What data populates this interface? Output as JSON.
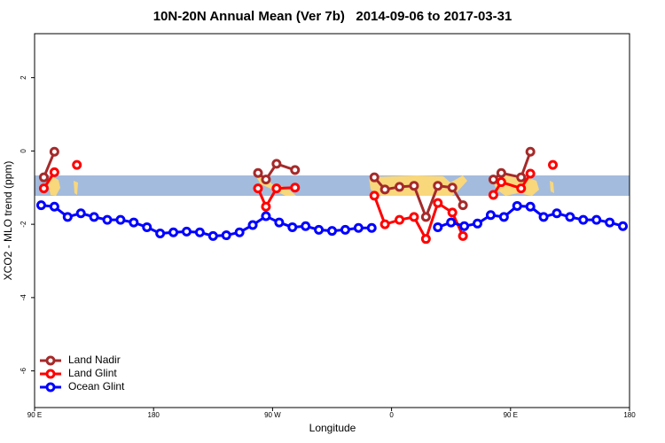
{
  "chart_data": {
    "type": "line",
    "title": "10N-20N Annual Mean (Ver 7b)   2014-09-06 to 2017-03-31",
    "x_label": "Longitude",
    "y_label": "XCO2 - MLO trend (ppm)",
    "xlim": [
      90,
      540
    ],
    "xticks": [
      {
        "value": 90,
        "label": "90 E"
      },
      180,
      {
        "value": 270,
        "label": "90 W"
      },
      {
        "value": 360,
        "label": "0"
      },
      {
        "value": 450,
        "label": "90 E"
      },
      {
        "value": 540,
        "label": "180"
      }
    ],
    "ylim": [
      -7,
      3.2
    ],
    "yticks": [
      -6,
      -4,
      -2,
      0,
      2
    ],
    "legend": "bottom-left",
    "series": [
      {
        "name": "Land Nadir",
        "color": "#a52a2a",
        "x": [
          97,
          105,
          null,
          259,
          265,
          273,
          287,
          null,
          347,
          355,
          366,
          377,
          386,
          395,
          406,
          414,
          null,
          437,
          443,
          458,
          465
        ],
        "values": [
          -0.72,
          -0.02,
          null,
          -0.6,
          -0.78,
          -0.35,
          -0.52,
          null,
          -0.72,
          -1.05,
          -0.98,
          -0.95,
          -1.8,
          -0.95,
          -1.0,
          -1.48,
          null,
          -0.78,
          -0.6,
          -0.72,
          -0.02
        ]
      },
      {
        "name": "Land Glint",
        "color": "#ff0000",
        "x": [
          97,
          105,
          null,
          122,
          null,
          259,
          265,
          273,
          287,
          null,
          347,
          355,
          366,
          377,
          386,
          395,
          406,
          414,
          null,
          437,
          443,
          458,
          465,
          null,
          482
        ],
        "values": [
          -1.02,
          -0.58,
          null,
          -0.38,
          null,
          -1.02,
          -1.52,
          -1.02,
          -1.0,
          null,
          -1.22,
          -2.0,
          -1.88,
          -1.8,
          -2.4,
          -1.42,
          -1.68,
          -2.32,
          null,
          -1.2,
          -0.85,
          -1.02,
          -0.62,
          null,
          -0.38
        ]
      },
      {
        "name": "Ocean Glint",
        "color": "#0000ff",
        "x": [
          95,
          105,
          115,
          125,
          135,
          145,
          155,
          165,
          175,
          185,
          195,
          205,
          215,
          225,
          235,
          245,
          255,
          265,
          275,
          285,
          295,
          305,
          315,
          325,
          335,
          345,
          null,
          395,
          405,
          415,
          425,
          435,
          445,
          455,
          465,
          475,
          485,
          495,
          505,
          515,
          525,
          535
        ],
        "values": [
          -1.48,
          -1.52,
          -1.8,
          -1.7,
          -1.8,
          -1.88,
          -1.88,
          -1.95,
          -2.08,
          -2.25,
          -2.22,
          -2.2,
          -2.22,
          -2.32,
          -2.3,
          -2.22,
          -2.02,
          -1.78,
          -1.95,
          -2.08,
          -2.05,
          -2.15,
          -2.18,
          -2.15,
          -2.1,
          -2.1,
          null,
          -2.08,
          -1.95,
          -2.05,
          -1.98,
          -1.75,
          -1.8,
          -1.5,
          -1.52,
          -1.8,
          -1.7,
          -1.8,
          -1.88,
          -1.88,
          -1.95,
          -2.05
        ]
      }
    ]
  }
}
